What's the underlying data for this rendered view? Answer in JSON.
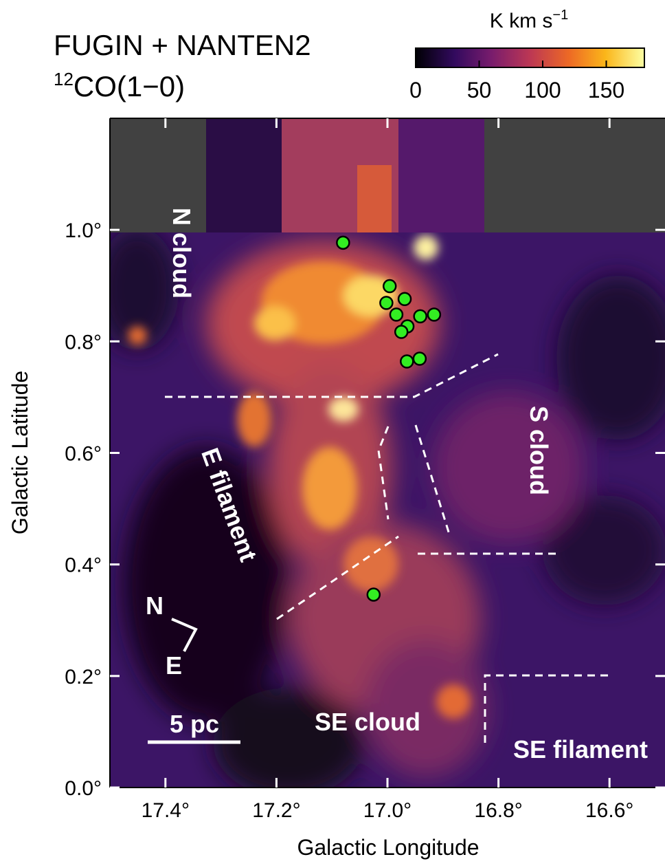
{
  "chart_data": {
    "type": "map",
    "title": "FUGIN + NANTEN2",
    "subtitle_isotope": "12",
    "subtitle": "CO(1−0)",
    "colorbar_label": "K km s",
    "colorbar_label_exponent": "−1",
    "colorbar_lim": [
      0,
      180
    ],
    "colorbar_ticks": [
      0,
      50,
      100,
      150
    ],
    "xlabel": "Galactic Longitude",
    "ylabel": "Galactic Latitude",
    "xlim": [
      17.5,
      16.5
    ],
    "ylim": [
      0,
      1.2
    ],
    "xticks": [
      {
        "value": 17.4,
        "label": "17.4°"
      },
      {
        "value": 17.2,
        "label": "17.2°"
      },
      {
        "value": 17.0,
        "label": "17.0°"
      },
      {
        "value": 16.8,
        "label": "16.8°"
      },
      {
        "value": 16.6,
        "label": "16.6°"
      }
    ],
    "yticks": [
      {
        "value": 0.0,
        "label": "0.0°"
      },
      {
        "value": 0.2,
        "label": "0.2°"
      },
      {
        "value": 0.4,
        "label": "0.4°"
      },
      {
        "value": 0.6,
        "label": "0.6°"
      },
      {
        "value": 0.8,
        "label": "0.8°"
      },
      {
        "value": 1.0,
        "label": "1.0°"
      }
    ],
    "points": {
      "color": "#33ee22",
      "x": [
        17.08,
        16.996,
        17.002,
        16.969,
        16.984,
        16.941,
        16.916,
        16.964,
        16.975,
        16.965,
        16.942,
        17.025
      ],
      "y": [
        0.977,
        0.899,
        0.869,
        0.876,
        0.848,
        0.845,
        0.848,
        0.827,
        0.817,
        0.764,
        0.769,
        0.346
      ]
    },
    "annotations": [
      "N cloud",
      "S cloud",
      "E filament",
      "SE cloud",
      "SE filament",
      "5 pc",
      "N",
      "E"
    ]
  }
}
